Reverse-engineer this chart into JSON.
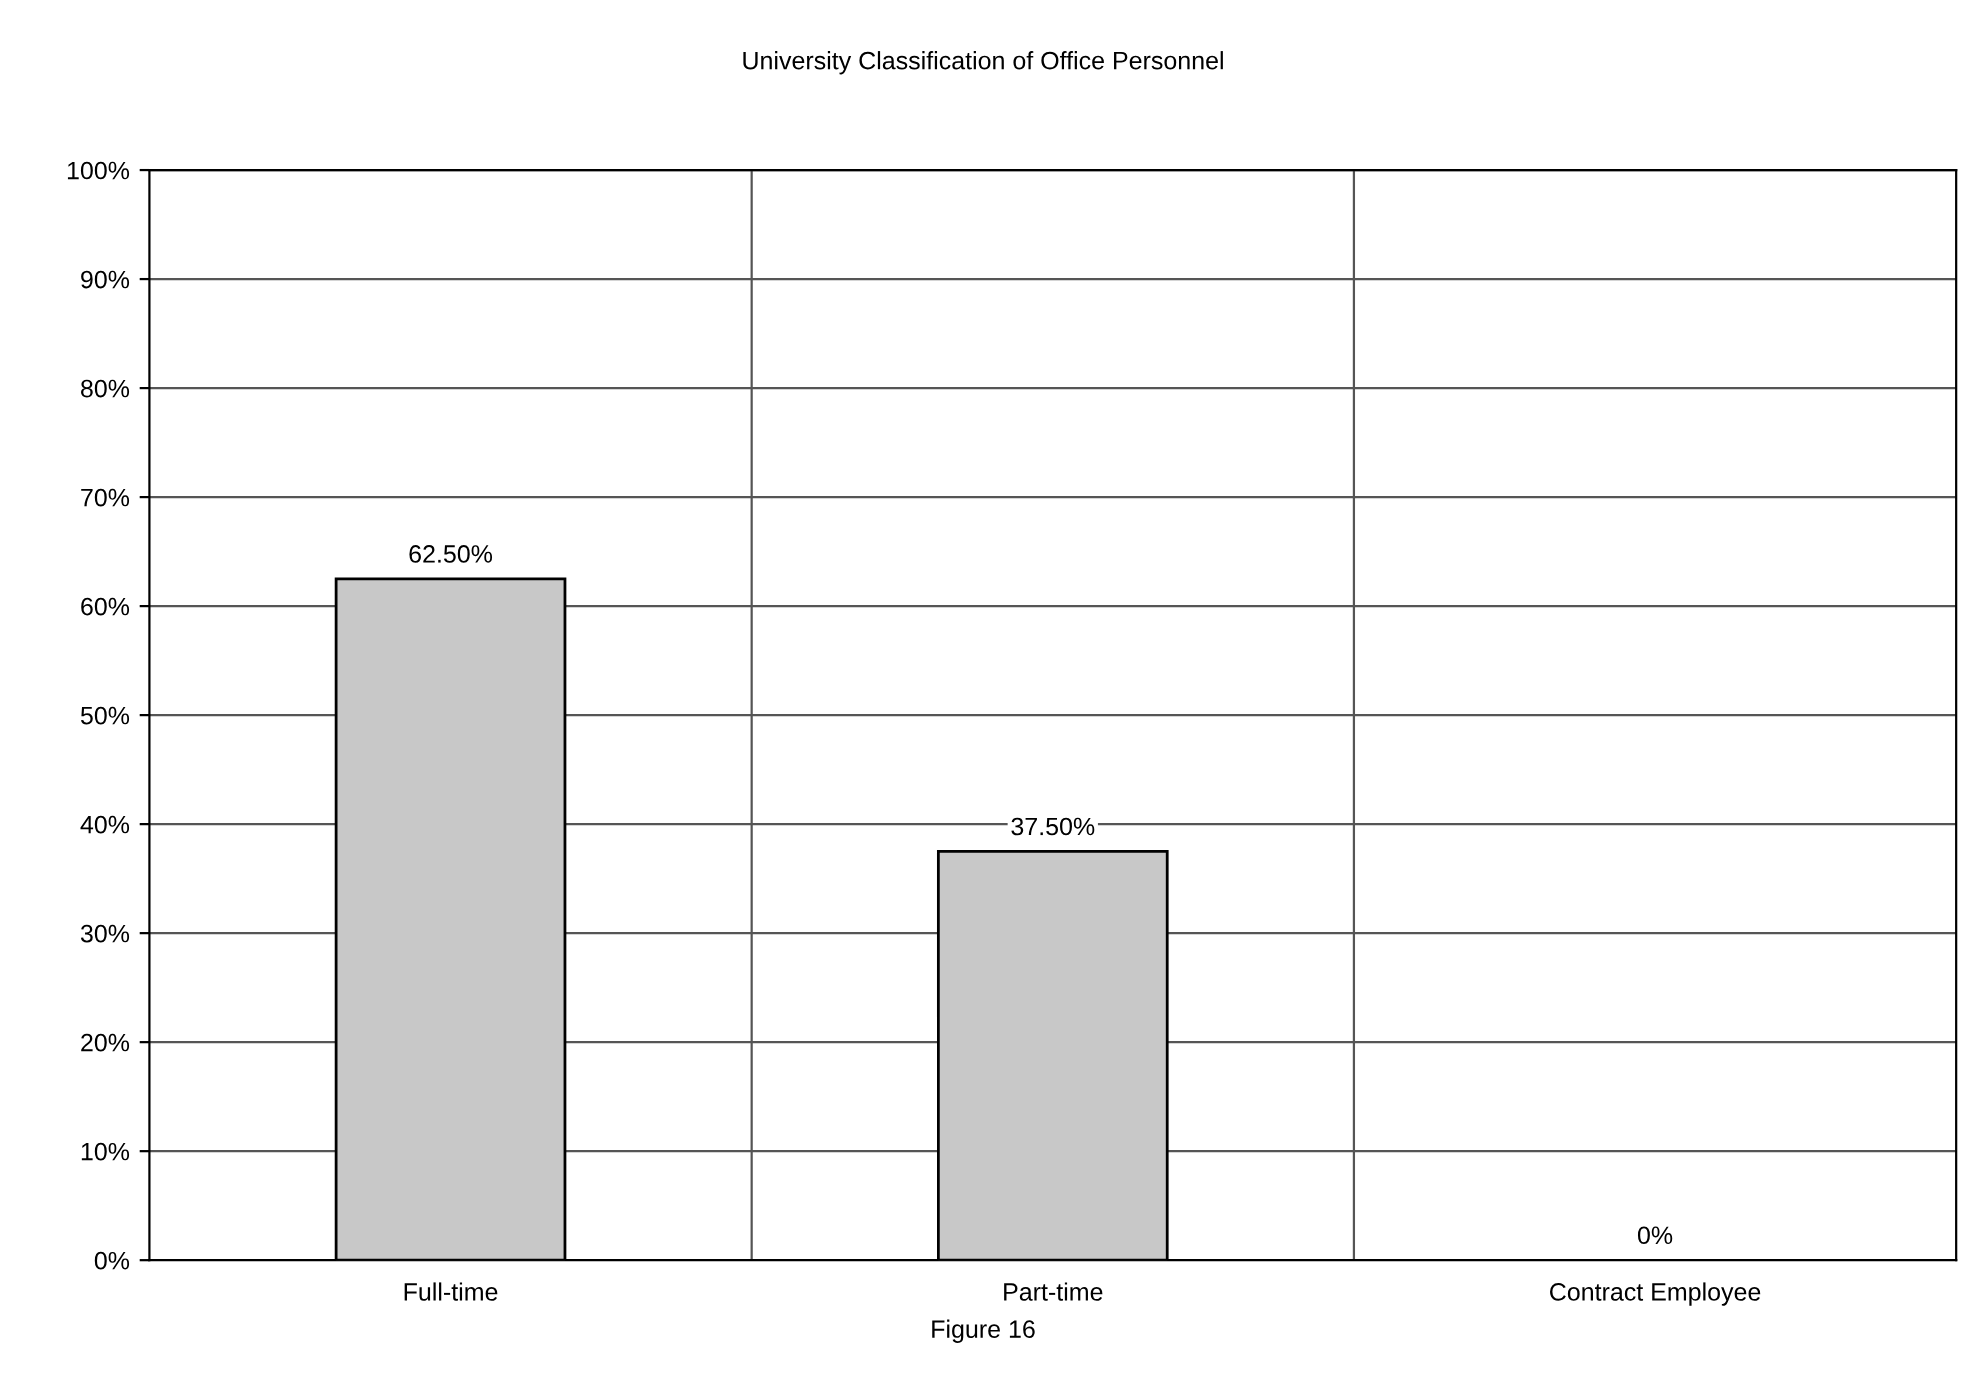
{
  "chart_data": {
    "type": "bar",
    "title": "University Classification of Office Personnel",
    "categories": [
      "Full-time",
      "Part-time",
      "Contract Employee"
    ],
    "values": [
      62.5,
      37.5,
      0
    ],
    "color": "#c8c8c8",
    "value_labels": [
      "62.50%",
      "37.50%",
      "0%"
    ],
    "ylim": [
      0,
      100
    ],
    "yticks": [
      {
        "value": 0,
        "label": "0%"
      },
      {
        "value": 10,
        "label": "10%"
      },
      {
        "value": 20,
        "label": "20%"
      },
      {
        "value": 30,
        "label": "30%"
      },
      {
        "value": 40,
        "label": "40%"
      },
      {
        "value": 50,
        "label": "50%"
      },
      {
        "value": 60,
        "label": "60%"
      },
      {
        "value": 70,
        "label": "70%"
      },
      {
        "value": 80,
        "label": "80%"
      },
      {
        "value": 90,
        "label": "90%"
      },
      {
        "value": 100,
        "label": "100%"
      }
    ],
    "grid": true,
    "legend": false,
    "annotations": [
      "Figure 16"
    ]
  }
}
